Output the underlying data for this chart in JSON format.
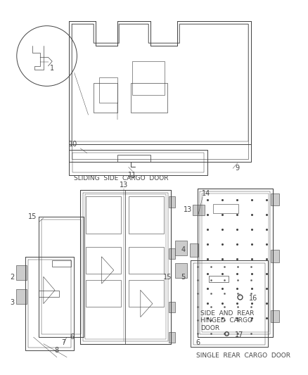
{
  "bg_color": "#ffffff",
  "fig_width": 4.38,
  "fig_height": 5.33,
  "dpi": 100,
  "lc": "#444444",
  "labels": {
    "sliding": "SLIDING  SIDE  CARGO  DOOR",
    "hinged": "SIDE  AND  REAR\nHINGED  CARGO\nDOOR",
    "single": "SINGLE  REAR  CARGO  DOOR"
  }
}
